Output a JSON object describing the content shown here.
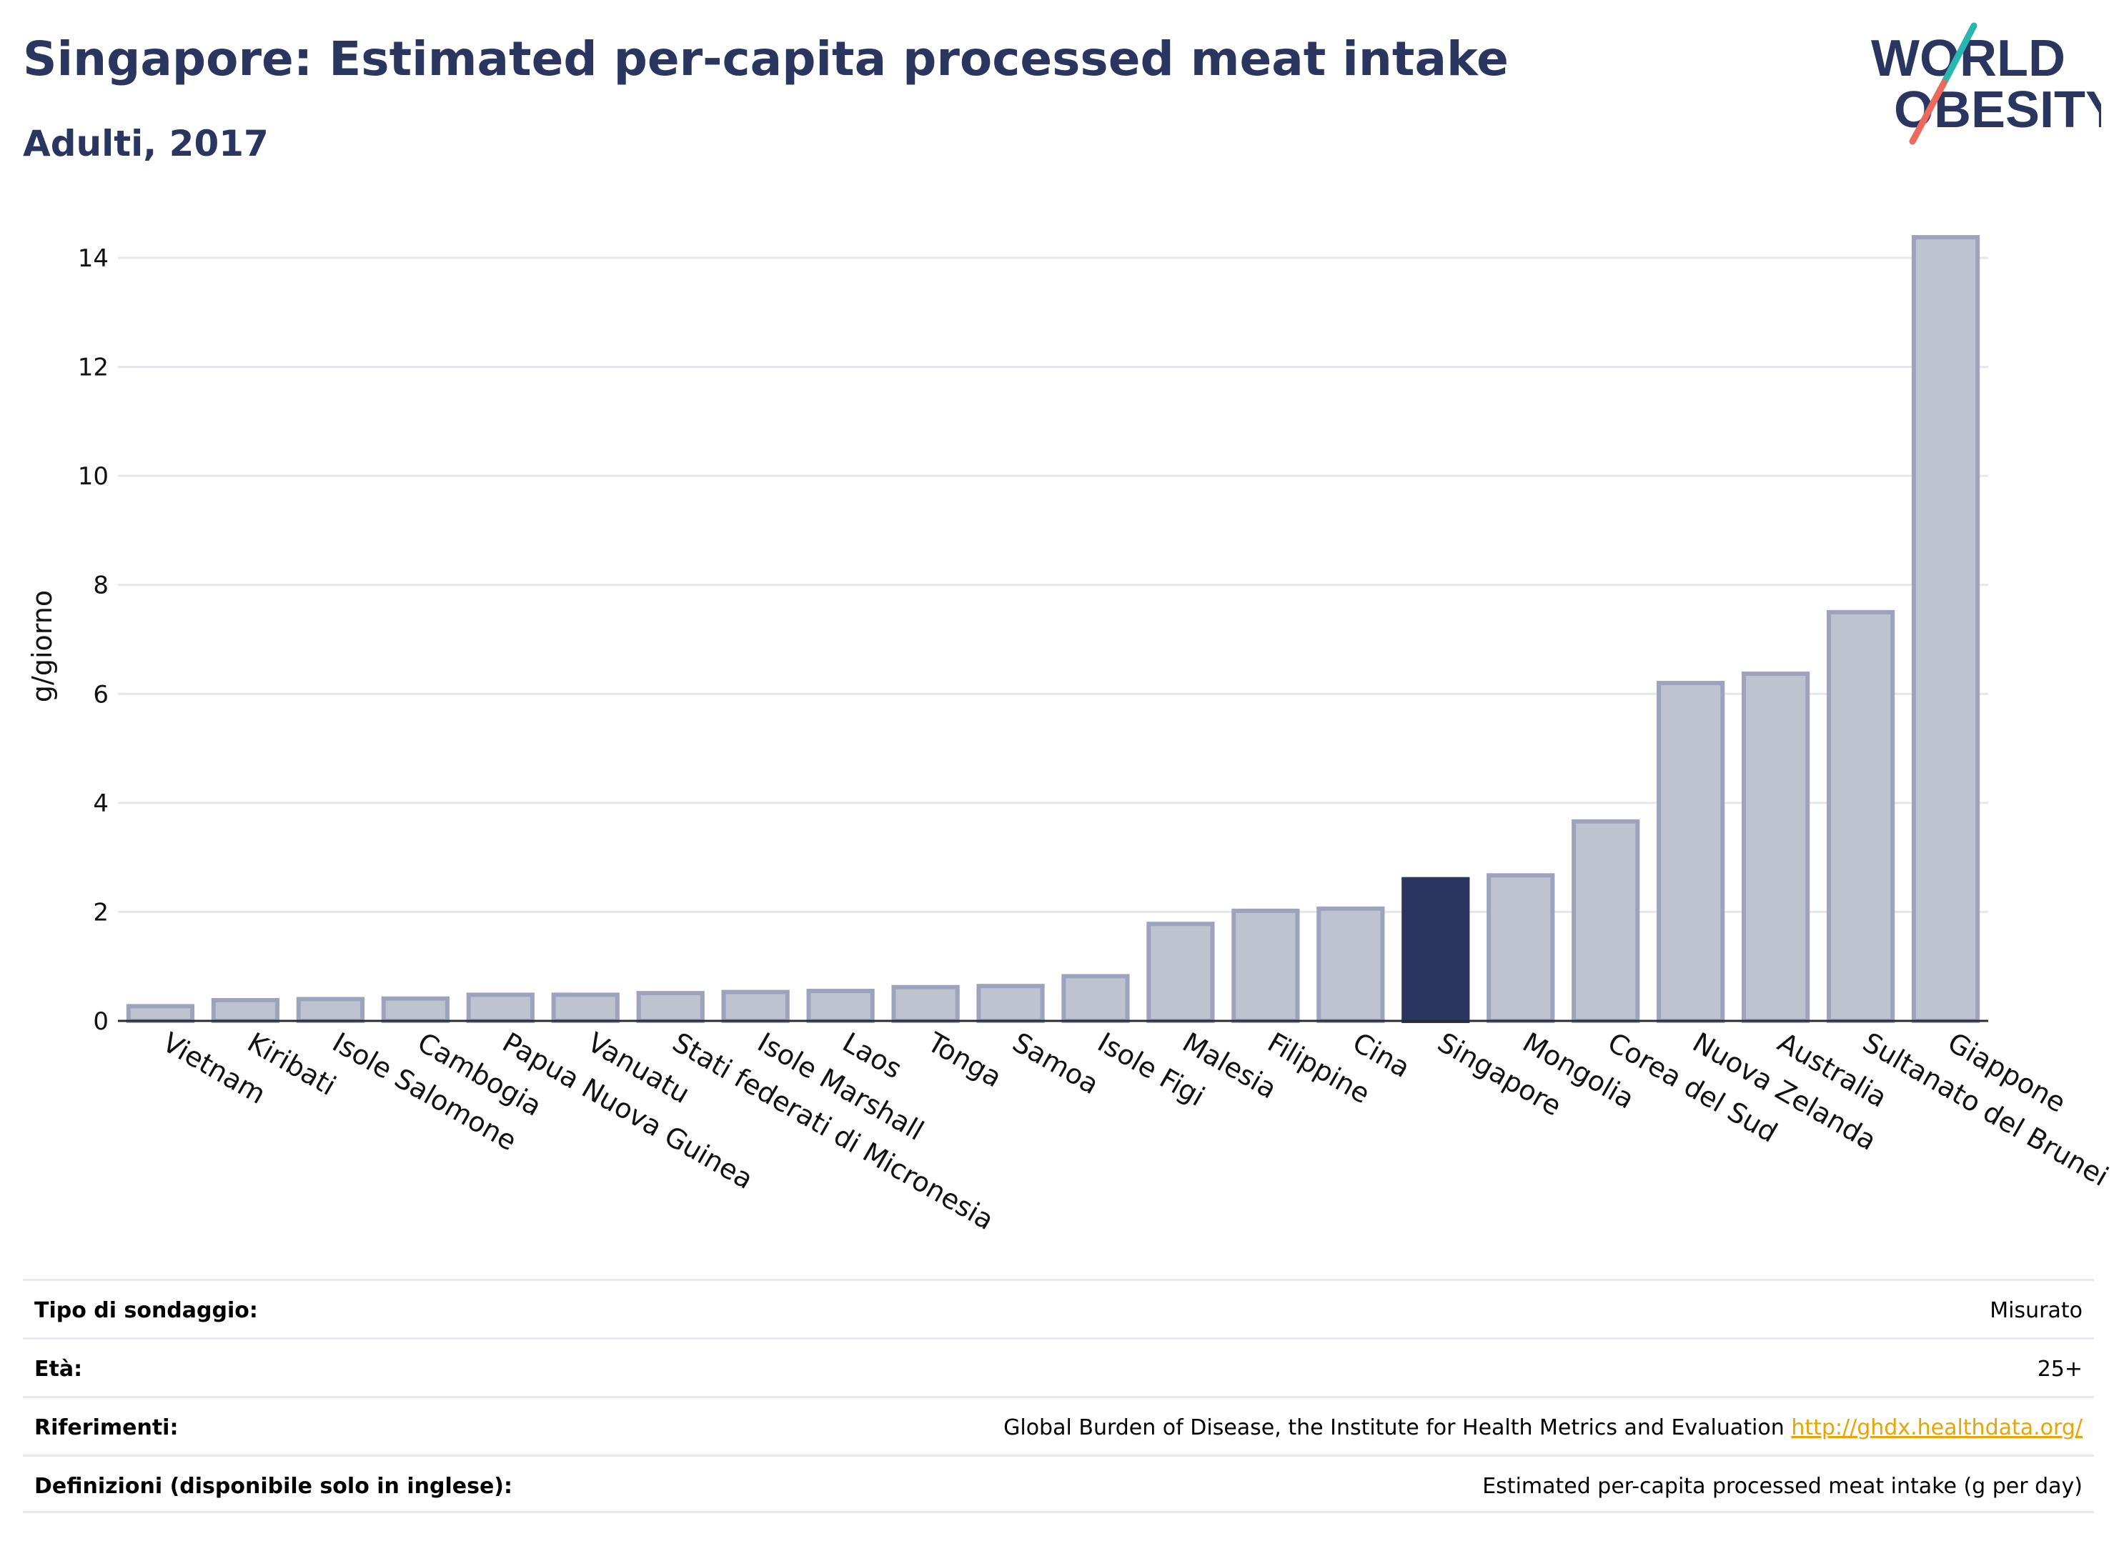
{
  "header": {
    "title": "Singapore: Estimated per-capita processed meat intake",
    "subtitle": "Adulti, 2017"
  },
  "logo": {
    "line1": "WORLD",
    "line2": "OBESITY"
  },
  "colors": {
    "highlight": "#2a3560",
    "bar_fill": "#bfc2cf",
    "bar_stroke": "#9ea3bd",
    "title": "#2a3560",
    "link": "#e8a400",
    "logo_teal": "#2ab5b0",
    "logo_coral": "#ec6a5c"
  },
  "chart_data": {
    "type": "bar",
    "title": "Singapore: Estimated per-capita processed meat intake",
    "subtitle": "Adulti, 2017",
    "ylabel": "g/giorno",
    "xlabel": "",
    "ylim": [
      0,
      14.8
    ],
    "yticks": [
      0,
      2,
      4,
      6,
      8,
      10,
      12,
      14
    ],
    "grid": true,
    "highlight": "Singapore",
    "categories": [
      "Vietnam",
      "Kiribati",
      "Isole Salomone",
      "Cambogia",
      "Papua Nuova Guinea",
      "Vanuatu",
      "Stati federati di Micronesia",
      "Isole Marshall",
      "Laos",
      "Tonga",
      "Samoa",
      "Isole Figi",
      "Malesia",
      "Filippine",
      "Cina",
      "Singapore",
      "Mongolia",
      "Corea del Sud",
      "Nuova Zelanda",
      "Australia",
      "Sultanato del Brunei",
      "Giappone"
    ],
    "values": [
      0.27,
      0.38,
      0.4,
      0.41,
      0.48,
      0.48,
      0.51,
      0.53,
      0.55,
      0.62,
      0.64,
      0.82,
      1.78,
      2.02,
      2.06,
      2.6,
      2.67,
      3.66,
      6.2,
      6.37,
      7.5,
      14.38
    ]
  },
  "info": {
    "rows": [
      {
        "label": "Tipo di sondaggio:",
        "value": "Misurato"
      },
      {
        "label": "Età:",
        "value": "25+"
      },
      {
        "label": "Riferimenti:",
        "value": "Global Burden of Disease, the Institute for Health Metrics and Evaluation",
        "link": "http://ghdx.healthdata.org/"
      },
      {
        "label": "Definizioni (disponibile solo in inglese):",
        "value": "Estimated per-capita processed meat intake (g per day)"
      }
    ]
  }
}
